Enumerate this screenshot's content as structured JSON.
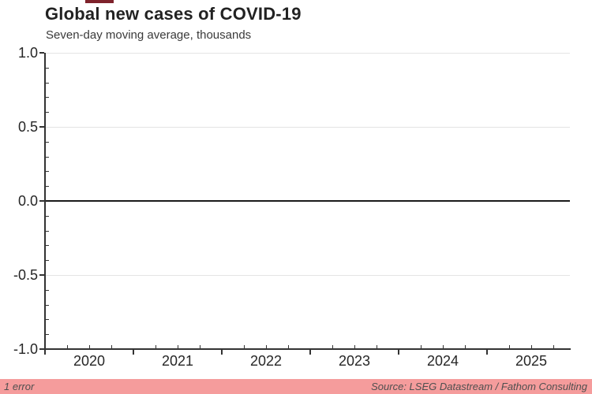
{
  "header": {
    "title": "Global new cases of COVID-19",
    "subtitle": "Seven-day moving average, thousands"
  },
  "footer": {
    "error_label": "1 error",
    "source": "Source: LSEG Datastream / Fathom Consulting"
  },
  "colors": {
    "footer_bar": "#f59c9c",
    "footer_text": "#4f4f4f",
    "axis": "#333333",
    "grid": "#e4e4e4",
    "zero_line": "#1a1a1a",
    "tick_label": "#262626",
    "title": "#222222",
    "top_mark": "#7e222b"
  },
  "chart_data": {
    "type": "line",
    "title": "Global new cases of COVID-19",
    "subtitle": "Seven-day moving average, thousands",
    "series": [],
    "x_tick_labels": [
      "2020",
      "2021",
      "2022",
      "2023",
      "2024",
      "2025"
    ],
    "y_tick_labels": [
      "1.0",
      "0.5",
      "0.0",
      "-0.5",
      "-1.0"
    ],
    "y_major_values": [
      1.0,
      0.5,
      0.0,
      -0.5,
      -1.0
    ],
    "y_minor_step": 0.1,
    "ylim": [
      -1.0,
      1.0
    ],
    "grid": "horizontal-major",
    "zero_line": true,
    "legend": "none"
  }
}
